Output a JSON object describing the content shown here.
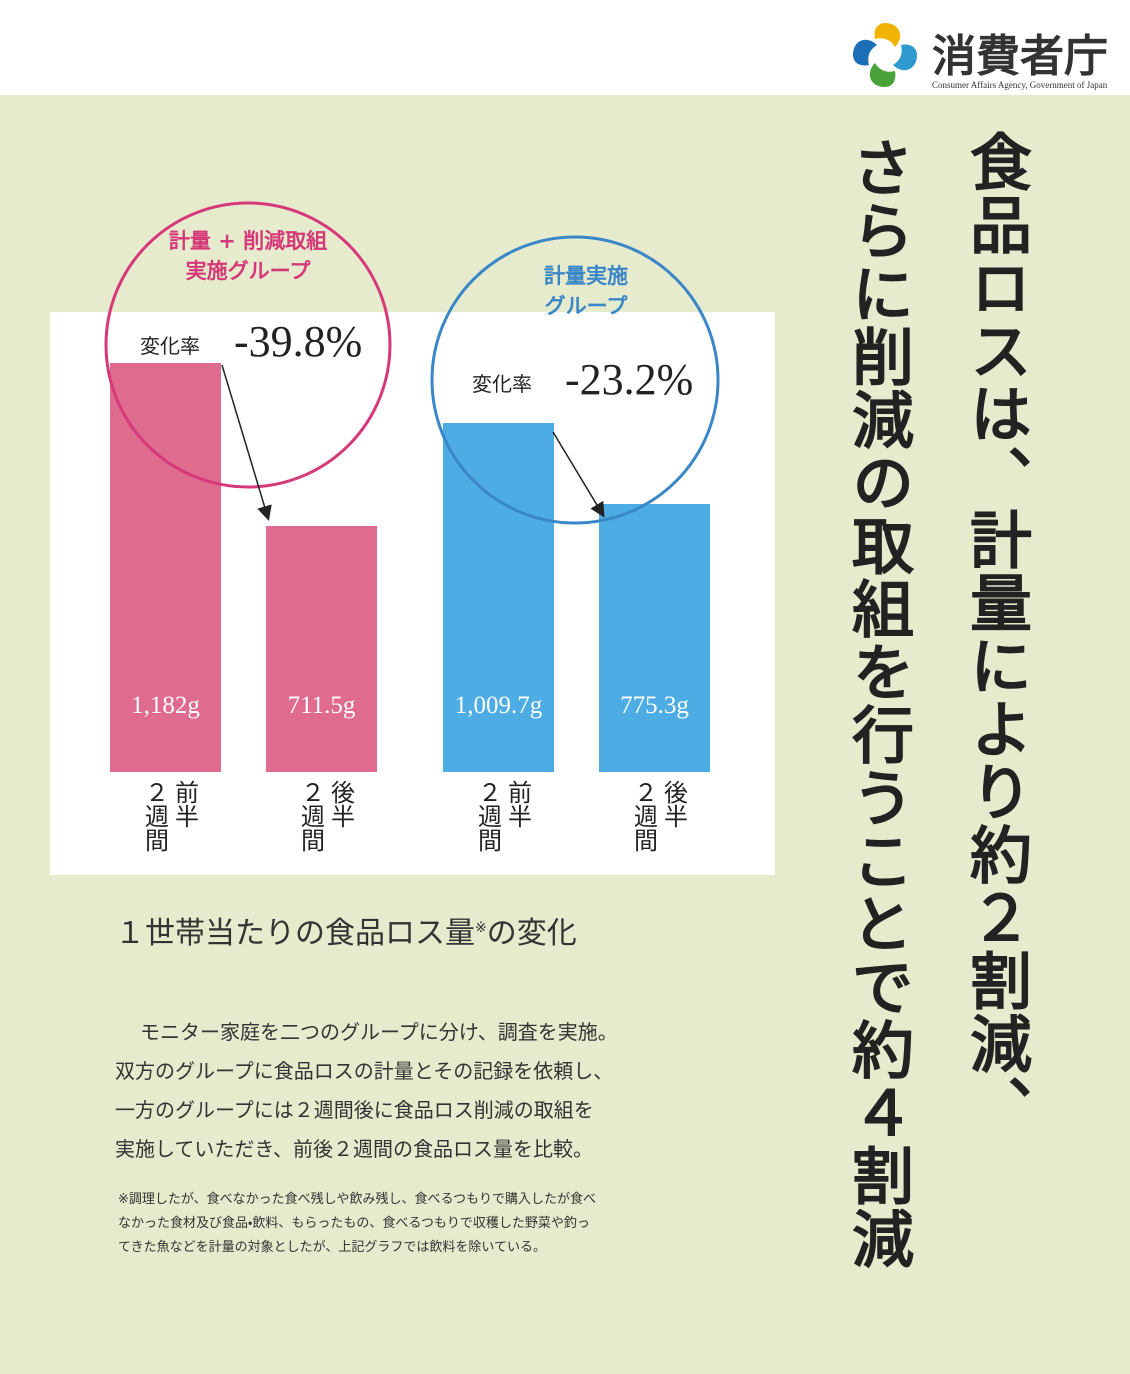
{
  "header": {
    "logo_text": "消費者庁",
    "logo_subtitle": "Consumer Affairs Agency, Government of Japan"
  },
  "headline": [
    "食品ロスは、計量により約２割減、",
    "さらに削減の取組を行うことで約４割減"
  ],
  "chart_data": {
    "type": "bar",
    "title": "１世帯当たりの食品ロス量",
    "title_note_mark": "※",
    "title_suffix": "の変化",
    "categories": [
      [
        "前半",
        "２週間"
      ],
      [
        "後半",
        "２週間"
      ]
    ],
    "change_caption": "変化率",
    "series": [
      {
        "name": "計量 + 削減取組\n実施グループ",
        "color": "#df6b8f",
        "circle_color": "#d6397a",
        "values": [
          1182,
          711.5
        ],
        "value_labels": [
          "1,182g",
          "711.5g"
        ],
        "change": {
          "value": -39.8,
          "label": "-39.8%"
        }
      },
      {
        "name": "計量実施\nグループ",
        "color": "#4eace4",
        "circle_color": "#3a87c8",
        "values": [
          1009.7,
          775.3
        ],
        "value_labels": [
          "1,009.7g",
          "775.3g"
        ],
        "change": {
          "value": -23.2,
          "label": "-23.2%"
        }
      }
    ]
  },
  "description": {
    "lines": [
      "モニター家庭を二つのグループに分け、調査を実施。",
      "双方のグループに食品ロスの計量とその記録を依頼し、",
      "一方のグループには２週間後に食品ロス削減の取組を",
      "実施していただき、前後２週間の食品ロス量を比較。"
    ],
    "footnote": [
      "※調理したが、食べなかった食べ残しや飲み残し、食べるつもりで購入したが食べ",
      "なかった食材及び食品・飲料、もらったもの、食べるつもりで収穫した野菜や釣っ",
      "てきた魚などを計量の対象としたが、上記グラフでは飲料を除いている。"
    ]
  }
}
